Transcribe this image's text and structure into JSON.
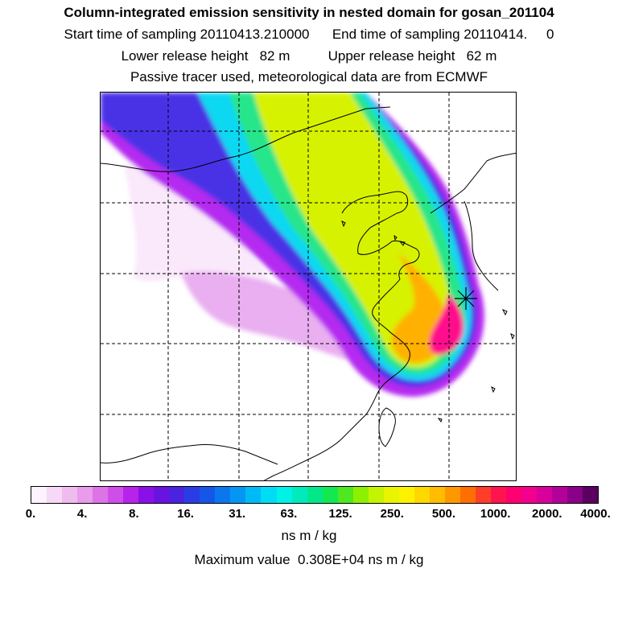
{
  "header": {
    "title": "Column-integrated emission sensitivity in nested domain for gosan_201104",
    "line2": "Start time of sampling 20110413.210000      End time of sampling 20110414.     0",
    "line3": "Lower release height   82 m          Upper release height   62 m",
    "line4": "Passive tracer used, meteorological data are from ECMWF"
  },
  "colorbar": {
    "colors": [
      "#fdf2fd",
      "#f7d8f7",
      "#f0bcf0",
      "#e89ce9",
      "#dc74e6",
      "#cf4eea",
      "#b823ea",
      "#8a10e8",
      "#6a12e0",
      "#4a22e0",
      "#2a3de4",
      "#1556e8",
      "#0a78ec",
      "#0596f2",
      "#00b9f5",
      "#00dcf5",
      "#00f2e6",
      "#00eabc",
      "#00e88a",
      "#14e850",
      "#4ee820",
      "#8ef000",
      "#c4f400",
      "#e8f400",
      "#fff200",
      "#ffd800",
      "#ffbc00",
      "#ff9800",
      "#ff6e00",
      "#ff3e2a",
      "#ff1450",
      "#ff0070",
      "#f2008e",
      "#d8009c",
      "#b4009a",
      "#8a0088",
      "#5a0060"
    ],
    "tick_labels": [
      "0.",
      "4.",
      "8.",
      "16.",
      "31.",
      "63.",
      "125.",
      "250.",
      "500.",
      "1000.",
      "2000.",
      "4000."
    ],
    "unit": "ns m / kg"
  },
  "max_value_text": "Maximum value  0.308E+04 ns m / kg",
  "map": {
    "receptor_marker": "asterisk-marker",
    "plume_colors": {
      "light": "#f5d6f7",
      "pale_violet": "#e7a6ee",
      "violet": "#b52cf0",
      "blue": "#4a33e6",
      "cyan": "#10d8f2",
      "green": "#27e58a",
      "yellow": "#d7f200",
      "orange": "#ffb000",
      "magenta": "#ff0a8c"
    }
  }
}
